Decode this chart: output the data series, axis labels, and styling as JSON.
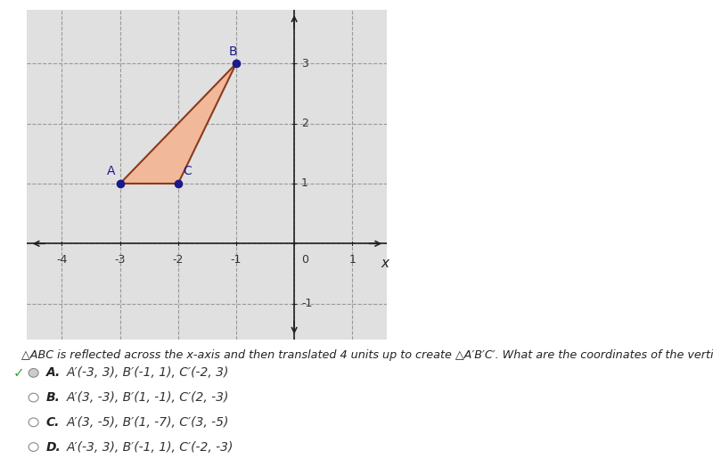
{
  "triangle_ABC": {
    "A": [
      -3,
      1
    ],
    "B": [
      -1,
      3
    ],
    "C": [
      -2,
      1
    ]
  },
  "triangle_fill_color": "#f2b89a",
  "triangle_edge_color": "#8b3a1a",
  "point_color": "#1a1a8c",
  "point_size": 6,
  "axis_color": "#222222",
  "grid_color": "#999999",
  "xlim": [
    -4.6,
    1.6
  ],
  "ylim": [
    -1.6,
    3.9
  ],
  "x_ticks": [
    -4,
    -3,
    -2,
    -1,
    0,
    1
  ],
  "y_ticks": [
    -1,
    0,
    1,
    2,
    3
  ],
  "question_text": "△ABC is reflected across the x-axis and then translated 4 units up to create △A′B′C′. What are the coordinates of the vertices of △A′B′C′ ?",
  "choices": [
    {
      "label": "A.",
      "text": "A′(-3, 3), B′(-1, 1), C′(-2, 3)",
      "correct": true
    },
    {
      "label": "B.",
      "text": "A′(3, -3), B′(1, -1), C′(2, -3)",
      "correct": false
    },
    {
      "label": "C.",
      "text": "A′(3, -5), B′(1, -7), C′(3, -5)",
      "correct": false
    },
    {
      "label": "D.",
      "text": "A′(-3, 3), B′(-1, 1), C′(-2, -3)",
      "correct": false
    }
  ],
  "checkmark_color": "#33aa33",
  "background_color": "#ffffff",
  "graph_bg_color": "#e0e0e0"
}
